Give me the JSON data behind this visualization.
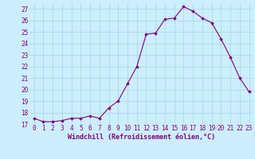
{
  "x": [
    0,
    1,
    2,
    3,
    4,
    5,
    6,
    7,
    8,
    9,
    10,
    11,
    12,
    13,
    14,
    15,
    16,
    17,
    18,
    19,
    20,
    21,
    22,
    23
  ],
  "y": [
    17.5,
    17.2,
    17.2,
    17.3,
    17.5,
    17.5,
    17.7,
    17.5,
    18.4,
    19.0,
    20.5,
    22.0,
    24.8,
    24.9,
    26.1,
    26.2,
    27.2,
    26.8,
    26.2,
    25.8,
    24.4,
    22.8,
    21.0,
    19.8
  ],
  "line_color": "#800080",
  "marker": "D",
  "marker_size": 1.8,
  "line_width": 0.8,
  "xlabel": "Windchill (Refroidissement éolien,°C)",
  "xlabel_fontsize": 6.0,
  "xlim": [
    -0.5,
    23.5
  ],
  "ylim": [
    17.0,
    27.5
  ],
  "yticks": [
    17,
    18,
    19,
    20,
    21,
    22,
    23,
    24,
    25,
    26,
    27
  ],
  "xtick_labels": [
    "0",
    "1",
    "2",
    "3",
    "4",
    "5",
    "6",
    "7",
    "8",
    "9",
    "10",
    "11",
    "12",
    "13",
    "14",
    "15",
    "16",
    "17",
    "18",
    "19",
    "20",
    "21",
    "22",
    "23"
  ],
  "bg_color": "#cceeff",
  "grid_color": "#aadddd",
  "tick_color": "#800080",
  "tick_fontsize": 5.5
}
